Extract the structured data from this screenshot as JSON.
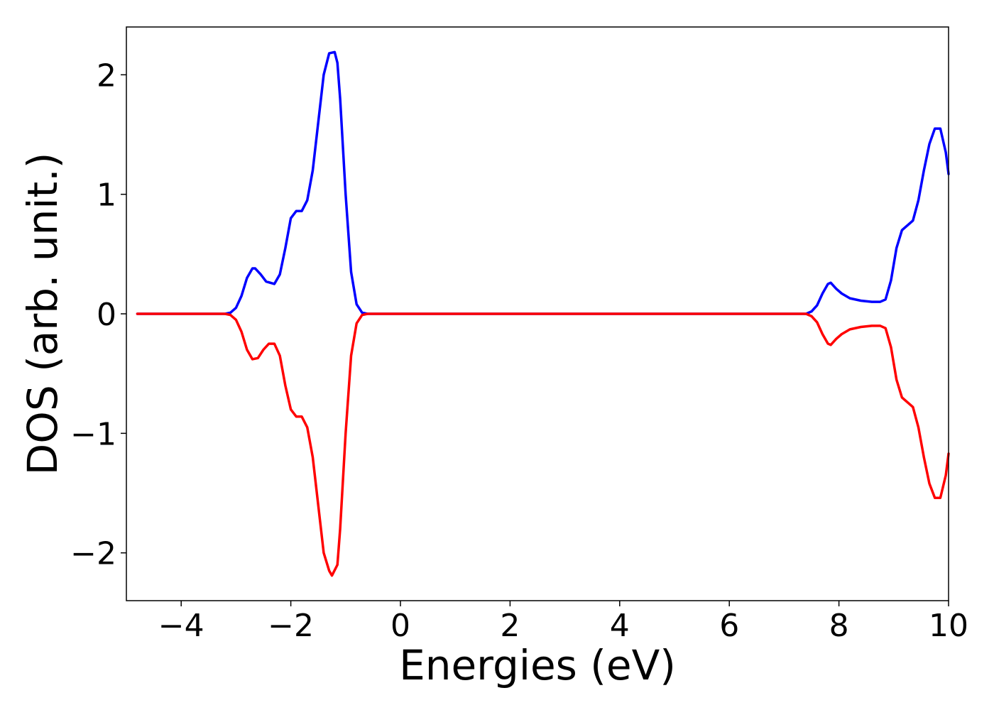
{
  "chart_data": {
    "type": "line",
    "title": "",
    "xlabel": "Energies (eV)",
    "ylabel": "DOS (arb. unit.)",
    "xlim": [
      -5,
      10
    ],
    "ylim": [
      -2.4,
      2.4
    ],
    "xticks": [
      -4,
      -2,
      0,
      2,
      4,
      6,
      8,
      10
    ],
    "yticks": [
      -2,
      -1,
      0,
      1,
      2
    ],
    "xtick_labels": [
      "−4",
      "−2",
      "0",
      "2",
      "4",
      "6",
      "8",
      "10"
    ],
    "ytick_labels": [
      "−2",
      "−1",
      "0",
      "1",
      "2"
    ],
    "grid": false,
    "legend": null,
    "series": [
      {
        "color": "#0000ff",
        "x": [
          -4.8,
          -3.5,
          -3.2,
          -3.1,
          -3.0,
          -2.9,
          -2.8,
          -2.7,
          -2.65,
          -2.55,
          -2.45,
          -2.3,
          -2.2,
          -2.1,
          -2.0,
          -1.9,
          -1.8,
          -1.7,
          -1.6,
          -1.5,
          -1.4,
          -1.3,
          -1.2,
          -1.15,
          -1.1,
          -1.0,
          -0.9,
          -0.8,
          -0.7,
          -0.6,
          -0.5,
          -0.4,
          0,
          4,
          7.0,
          7.4,
          7.5,
          7.6,
          7.7,
          7.8,
          7.85,
          7.95,
          8.05,
          8.2,
          8.4,
          8.6,
          8.75,
          8.85,
          8.95,
          9.05,
          9.15,
          9.25,
          9.35,
          9.45,
          9.55,
          9.65,
          9.75,
          9.85,
          9.95,
          10.0
        ],
        "y": [
          0,
          0,
          0.0,
          0.01,
          0.05,
          0.15,
          0.3,
          0.38,
          0.38,
          0.33,
          0.27,
          0.25,
          0.33,
          0.55,
          0.8,
          0.86,
          0.86,
          0.95,
          1.2,
          1.6,
          2.0,
          2.18,
          2.19,
          2.1,
          1.8,
          1.0,
          0.35,
          0.08,
          0.01,
          0.0,
          0.0,
          0.0,
          0,
          0,
          0,
          0.0,
          0.02,
          0.07,
          0.17,
          0.25,
          0.26,
          0.21,
          0.17,
          0.13,
          0.11,
          0.1,
          0.1,
          0.12,
          0.28,
          0.55,
          0.7,
          0.74,
          0.78,
          0.95,
          1.2,
          1.42,
          1.55,
          1.55,
          1.35,
          1.17
        ]
      },
      {
        "color": "#ff0000",
        "x": [
          -4.8,
          -3.5,
          -3.2,
          -3.1,
          -3.0,
          -2.9,
          -2.8,
          -2.7,
          -2.6,
          -2.5,
          -2.4,
          -2.3,
          -2.2,
          -2.1,
          -2.0,
          -1.9,
          -1.8,
          -1.7,
          -1.6,
          -1.5,
          -1.4,
          -1.3,
          -1.25,
          -1.15,
          -1.1,
          -1.0,
          -0.9,
          -0.8,
          -0.7,
          -0.6,
          -0.5,
          -0.4,
          0,
          4,
          7.0,
          7.4,
          7.5,
          7.6,
          7.7,
          7.8,
          7.85,
          7.95,
          8.05,
          8.2,
          8.4,
          8.6,
          8.75,
          8.85,
          8.95,
          9.05,
          9.15,
          9.25,
          9.35,
          9.45,
          9.55,
          9.65,
          9.75,
          9.85,
          9.95,
          10.0
        ],
        "y": [
          0,
          0,
          0.0,
          -0.01,
          -0.05,
          -0.15,
          -0.3,
          -0.38,
          -0.37,
          -0.3,
          -0.25,
          -0.25,
          -0.35,
          -0.6,
          -0.8,
          -0.86,
          -0.86,
          -0.95,
          -1.2,
          -1.6,
          -2.0,
          -2.15,
          -2.19,
          -2.1,
          -1.8,
          -1.0,
          -0.35,
          -0.08,
          -0.01,
          0.0,
          0.0,
          0.0,
          0,
          0,
          0,
          0.0,
          -0.02,
          -0.07,
          -0.17,
          -0.25,
          -0.26,
          -0.21,
          -0.17,
          -0.13,
          -0.11,
          -0.1,
          -0.1,
          -0.12,
          -0.28,
          -0.55,
          -0.7,
          -0.74,
          -0.78,
          -0.95,
          -1.2,
          -1.42,
          -1.54,
          -1.54,
          -1.35,
          -1.17
        ]
      }
    ]
  }
}
